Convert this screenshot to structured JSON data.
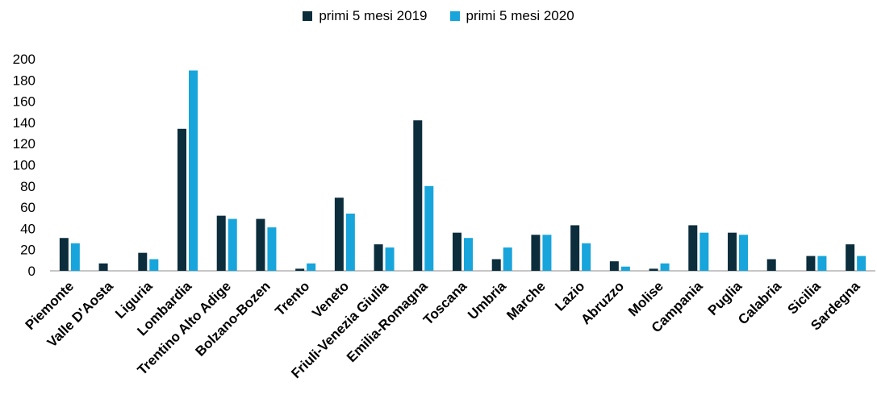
{
  "chart_data": {
    "type": "bar",
    "title": "",
    "xlabel": "",
    "ylabel": "",
    "ylim": [
      0,
      200
    ],
    "yticks": [
      0,
      20,
      40,
      60,
      80,
      100,
      120,
      140,
      160,
      180,
      200
    ],
    "grid": false,
    "legend_position": "top-center",
    "categories": [
      "Piemonte",
      "Valle D'Aosta",
      "Liguria",
      "Lombardia",
      "Trentino Alto Adige",
      "Bolzano-Bozen",
      "Trento",
      "Veneto",
      "Friuli-Venezia Giulia",
      "Emilia-Romagna",
      "Toscana",
      "Umbria",
      "Marche",
      "Lazio",
      "Abruzzo",
      "Molise",
      "Campania",
      "Puglia",
      "Calabria",
      "Sicilia",
      "Sardegna"
    ],
    "series": [
      {
        "name": "primi 5 mesi 2019",
        "color": "#0b2d3c",
        "values": [
          31,
          7,
          17,
          134,
          52,
          49,
          2,
          69,
          25,
          142,
          36,
          11,
          34,
          43,
          9,
          2,
          43,
          36,
          11,
          14,
          25
        ]
      },
      {
        "name": "primi 5 mesi 2020",
        "color": "#17a5db",
        "values": [
          26,
          0,
          11,
          189,
          49,
          41,
          7,
          54,
          22,
          80,
          31,
          22,
          34,
          26,
          4,
          7,
          36,
          34,
          0,
          14,
          14
        ]
      }
    ]
  }
}
